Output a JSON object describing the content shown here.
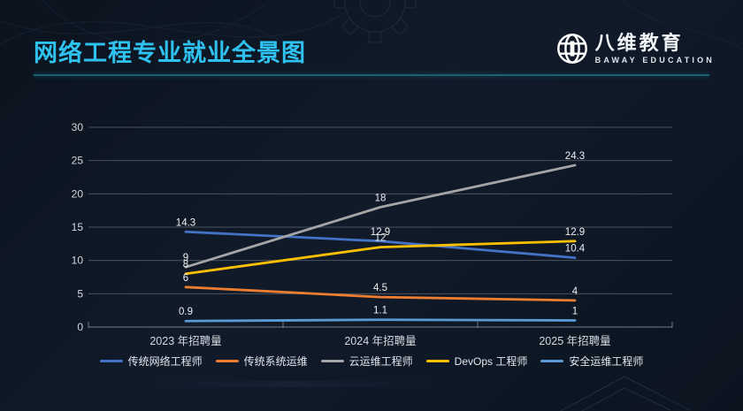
{
  "slide": {
    "title": "网络工程专业就业全景图",
    "accent_color": "#2fc2f0",
    "underline_color": "#17626f",
    "background_color": "#0e1826"
  },
  "logo": {
    "name": "八维教育",
    "subtitle": "BAWAY EDUCATION",
    "icon": "globe-icon",
    "color": "#ffffff"
  },
  "chart_data": {
    "type": "line",
    "title": "",
    "xlabel": "",
    "ylabel": "",
    "categories": [
      "2023 年招聘量",
      "2024 年招聘量",
      "2025 年招聘量"
    ],
    "series": [
      {
        "name": "传统网络工程师",
        "color": "#4472C4",
        "values": [
          14.3,
          12.9,
          10.4
        ]
      },
      {
        "name": "传统系统运维",
        "color": "#ED7D31",
        "values": [
          6,
          4.5,
          4
        ]
      },
      {
        "name": "云运维工程师",
        "color": "#A5A5A5",
        "values": [
          9,
          18,
          24.3
        ]
      },
      {
        "name": "DevOps 工程师",
        "color": "#FFC000",
        "values": [
          8,
          12,
          12.9
        ]
      },
      {
        "name": "安全运维工程师",
        "color": "#5B9BD5",
        "values": [
          0.9,
          1.1,
          1
        ]
      }
    ],
    "data_labels": [
      [
        "14.3",
        "12.9",
        "10.4"
      ],
      [
        "6",
        "4.5",
        "4"
      ],
      [
        "9",
        "18",
        "24.3"
      ],
      [
        "8",
        "12",
        "12.9"
      ],
      [
        "0.9",
        "1.1",
        "1"
      ]
    ],
    "y_ticks": [
      "0",
      "5",
      "10",
      "15",
      "20",
      "25",
      "30"
    ],
    "ylim": [
      0,
      30
    ],
    "grid": true,
    "legend_position": "bottom",
    "axis_text_color": "#d3d8de",
    "label_text_color": "#eef0f2",
    "grid_color": "#7c838c"
  }
}
